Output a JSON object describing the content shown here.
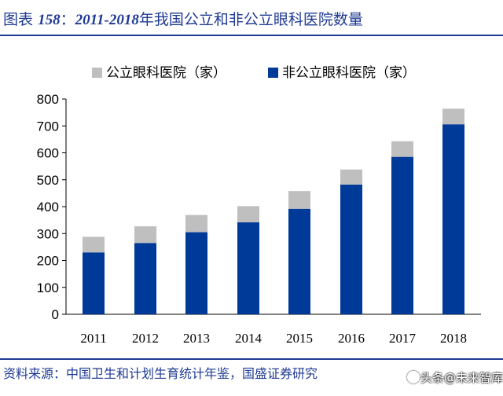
{
  "title": {
    "prefix": "图表",
    "number": "158",
    "sep": "：",
    "years": "2011-2018",
    "text": "年我国公立和非公立眼科医院数量"
  },
  "source": "资料来源：中国卫生和计划生育统计年鉴，国盛证券研究",
  "watermark": "头条@未来智库",
  "chart_data": {
    "type": "bar",
    "stacked": true,
    "categories": [
      "2011",
      "2012",
      "2013",
      "2014",
      "2015",
      "2016",
      "2017",
      "2018"
    ],
    "series": [
      {
        "name": "非公立眼科医院（家）",
        "color": "#003a99",
        "values": [
          230,
          265,
          305,
          342,
          392,
          482,
          585,
          706
        ]
      },
      {
        "name": "公立眼科医院（家）",
        "color": "#bfbfbf",
        "values": [
          58,
          62,
          64,
          60,
          66,
          56,
          58,
          58
        ]
      }
    ],
    "legend_order": [
      "公立眼科医院（家）",
      "非公立眼科医院（家）"
    ],
    "yticks": [
      0,
      100,
      200,
      300,
      400,
      500,
      600,
      700,
      800
    ],
    "ylim": [
      0,
      800
    ],
    "grid": false,
    "legend_position": "top"
  }
}
